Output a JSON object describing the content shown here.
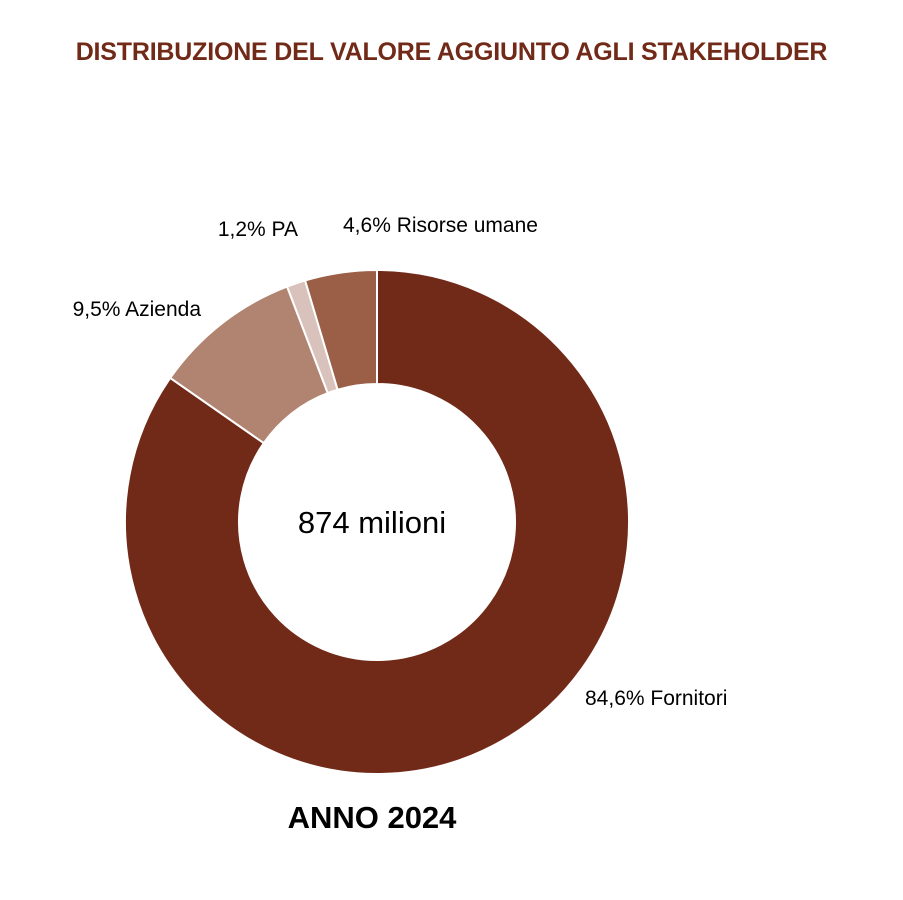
{
  "chart_data": {
    "type": "pie",
    "variant": "donut",
    "title": "DISTRIBUZIONE DEL VALORE AGGIUNTO AGLI STAKEHOLDER",
    "center_text": "874 milioni",
    "footer": "ANNO 2024",
    "slices": [
      {
        "name": "Fornitori",
        "value": 84.6,
        "label": "84,6% Fornitori",
        "color": "#722a18"
      },
      {
        "name": "Azienda",
        "value": 9.5,
        "label": "9,5% Azienda",
        "color": "#b18371"
      },
      {
        "name": "PA",
        "value": 1.2,
        "label": "1,2% PA",
        "color": "#d8c2bb"
      },
      {
        "name": "Risorse umane",
        "value": 4.6,
        "label": "4,6% Risorse umane",
        "color": "#9b5e47"
      }
    ]
  },
  "colors": {
    "title": "#722a18",
    "text": "#000000",
    "separator": "#ffffff"
  }
}
